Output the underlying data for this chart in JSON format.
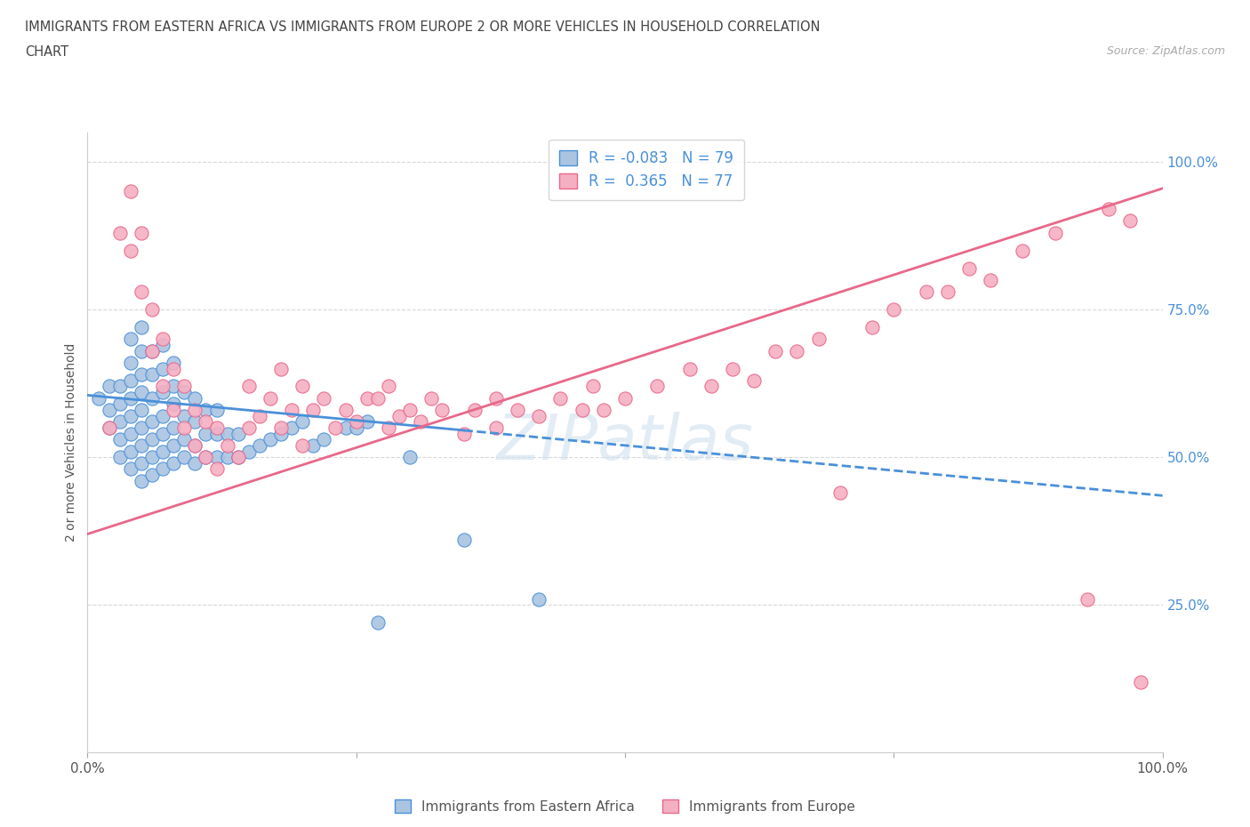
{
  "title_line1": "IMMIGRANTS FROM EASTERN AFRICA VS IMMIGRANTS FROM EUROPE 2 OR MORE VEHICLES IN HOUSEHOLD CORRELATION",
  "title_line2": "CHART",
  "source": "Source: ZipAtlas.com",
  "ylabel": "2 or more Vehicles in Household",
  "xlim": [
    0.0,
    1.0
  ],
  "ylim": [
    0.0,
    1.05
  ],
  "xtick_labels": [
    "0.0%",
    "",
    "",
    "",
    "100.0%"
  ],
  "xtick_vals": [
    0.0,
    0.25,
    0.5,
    0.75,
    1.0
  ],
  "ytick_labels": [
    "25.0%",
    "50.0%",
    "75.0%",
    "100.0%"
  ],
  "ytick_vals": [
    0.25,
    0.5,
    0.75,
    1.0
  ],
  "blue_R": -0.083,
  "blue_N": 79,
  "pink_R": 0.365,
  "pink_N": 77,
  "blue_color": "#aac4e2",
  "pink_color": "#f5afc3",
  "blue_line_color": "#4a90d9",
  "pink_line_color": "#e8688a",
  "legend_blue_label": "Immigrants from Eastern Africa",
  "legend_pink_label": "Immigrants from Europe",
  "watermark": "ZIPatlas",
  "blue_scatter_x": [
    0.01,
    0.02,
    0.02,
    0.02,
    0.03,
    0.03,
    0.03,
    0.03,
    0.03,
    0.04,
    0.04,
    0.04,
    0.04,
    0.04,
    0.04,
    0.04,
    0.04,
    0.05,
    0.05,
    0.05,
    0.05,
    0.05,
    0.05,
    0.05,
    0.05,
    0.05,
    0.06,
    0.06,
    0.06,
    0.06,
    0.06,
    0.06,
    0.06,
    0.07,
    0.07,
    0.07,
    0.07,
    0.07,
    0.07,
    0.07,
    0.08,
    0.08,
    0.08,
    0.08,
    0.08,
    0.08,
    0.09,
    0.09,
    0.09,
    0.09,
    0.1,
    0.1,
    0.1,
    0.1,
    0.11,
    0.11,
    0.11,
    0.12,
    0.12,
    0.12,
    0.13,
    0.13,
    0.14,
    0.14,
    0.15,
    0.16,
    0.17,
    0.18,
    0.19,
    0.2,
    0.21,
    0.22,
    0.24,
    0.25,
    0.26,
    0.27,
    0.3,
    0.35,
    0.42
  ],
  "blue_scatter_y": [
    0.6,
    0.55,
    0.58,
    0.62,
    0.5,
    0.53,
    0.56,
    0.59,
    0.62,
    0.48,
    0.51,
    0.54,
    0.57,
    0.6,
    0.63,
    0.66,
    0.7,
    0.46,
    0.49,
    0.52,
    0.55,
    0.58,
    0.61,
    0.64,
    0.68,
    0.72,
    0.47,
    0.5,
    0.53,
    0.56,
    0.6,
    0.64,
    0.68,
    0.48,
    0.51,
    0.54,
    0.57,
    0.61,
    0.65,
    0.69,
    0.49,
    0.52,
    0.55,
    0.59,
    0.62,
    0.66,
    0.5,
    0.53,
    0.57,
    0.61,
    0.49,
    0.52,
    0.56,
    0.6,
    0.5,
    0.54,
    0.58,
    0.5,
    0.54,
    0.58,
    0.5,
    0.54,
    0.5,
    0.54,
    0.51,
    0.52,
    0.53,
    0.54,
    0.55,
    0.56,
    0.52,
    0.53,
    0.55,
    0.55,
    0.56,
    0.22,
    0.5,
    0.36,
    0.26
  ],
  "pink_scatter_x": [
    0.02,
    0.03,
    0.04,
    0.04,
    0.05,
    0.05,
    0.06,
    0.06,
    0.07,
    0.07,
    0.08,
    0.08,
    0.09,
    0.09,
    0.1,
    0.1,
    0.11,
    0.11,
    0.12,
    0.12,
    0.13,
    0.14,
    0.15,
    0.15,
    0.16,
    0.17,
    0.18,
    0.18,
    0.19,
    0.2,
    0.2,
    0.21,
    0.22,
    0.23,
    0.24,
    0.25,
    0.26,
    0.27,
    0.28,
    0.28,
    0.29,
    0.3,
    0.31,
    0.32,
    0.33,
    0.35,
    0.36,
    0.38,
    0.38,
    0.4,
    0.42,
    0.44,
    0.46,
    0.47,
    0.48,
    0.5,
    0.53,
    0.56,
    0.58,
    0.6,
    0.62,
    0.64,
    0.66,
    0.68,
    0.7,
    0.73,
    0.75,
    0.78,
    0.8,
    0.82,
    0.84,
    0.87,
    0.9,
    0.93,
    0.95,
    0.97,
    0.98
  ],
  "pink_scatter_y": [
    0.55,
    0.88,
    0.85,
    0.95,
    0.78,
    0.88,
    0.68,
    0.75,
    0.62,
    0.7,
    0.58,
    0.65,
    0.55,
    0.62,
    0.52,
    0.58,
    0.5,
    0.56,
    0.48,
    0.55,
    0.52,
    0.5,
    0.55,
    0.62,
    0.57,
    0.6,
    0.55,
    0.65,
    0.58,
    0.52,
    0.62,
    0.58,
    0.6,
    0.55,
    0.58,
    0.56,
    0.6,
    0.6,
    0.55,
    0.62,
    0.57,
    0.58,
    0.56,
    0.6,
    0.58,
    0.54,
    0.58,
    0.55,
    0.6,
    0.58,
    0.57,
    0.6,
    0.58,
    0.62,
    0.58,
    0.6,
    0.62,
    0.65,
    0.62,
    0.65,
    0.63,
    0.68,
    0.68,
    0.7,
    0.44,
    0.72,
    0.75,
    0.78,
    0.78,
    0.82,
    0.8,
    0.85,
    0.88,
    0.26,
    0.92,
    0.9,
    0.12
  ],
  "background_color": "#ffffff",
  "grid_color": "#d8d8d8",
  "blue_line_start_x": 0.0,
  "blue_line_start_y": 0.605,
  "blue_line_end_x": 1.0,
  "blue_line_end_y": 0.435,
  "pink_line_start_x": 0.0,
  "pink_line_start_y": 0.37,
  "pink_line_end_x": 1.0,
  "pink_line_end_y": 0.955
}
